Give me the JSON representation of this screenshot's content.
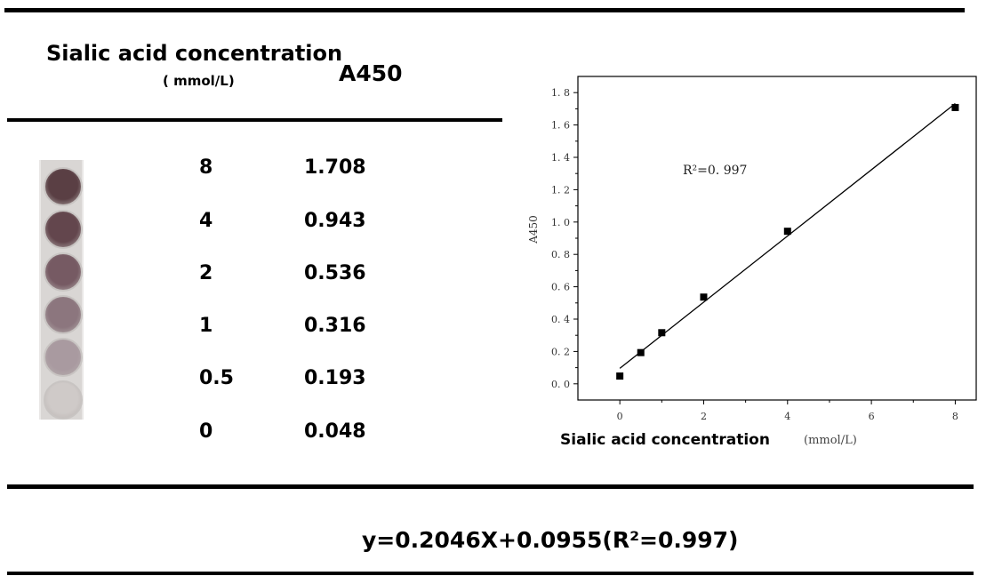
{
  "table": {
    "header_concentration": "Sialic acid concentration",
    "header_unit": "( mmol/L)",
    "header_absorbance": "A450",
    "rows": [
      {
        "conc": "8",
        "a450": "1.708"
      },
      {
        "conc": "4",
        "a450": "0.943"
      },
      {
        "conc": "2",
        "a450": "0.536"
      },
      {
        "conc": "1",
        "a450": "0.316"
      },
      {
        "conc": "0.5",
        "a450": "0.193"
      },
      {
        "conc": "0",
        "a450": "0.048"
      }
    ]
  },
  "wells": {
    "colors": [
      "#5a3f44",
      "#63464d",
      "#765a63",
      "#8c767e",
      "#a99aa0",
      "#cfcac8"
    ]
  },
  "equation": "y=0.2046X+0.0955(R²=0.997)",
  "chart_data": {
    "type": "scatter",
    "xlabel": "Sialic acid concentration",
    "xlabel_unit": "(mmol/L)",
    "ylabel": "A450",
    "annotation": "R²=0. 997",
    "x": [
      0,
      0.5,
      1,
      2,
      4,
      8
    ],
    "y": [
      0.048,
      0.193,
      0.316,
      0.536,
      0.943,
      1.708
    ],
    "fit": {
      "slope": 0.2046,
      "intercept": 0.0955
    },
    "xlim": [
      -1,
      8.5
    ],
    "ylim": [
      -0.1,
      1.9
    ],
    "xticks": [
      0,
      2,
      4,
      6,
      8
    ],
    "yticks": [
      0.0,
      0.2,
      0.4,
      0.6,
      0.8,
      1.0,
      1.2,
      1.4,
      1.6,
      1.8
    ],
    "xtick_labels": [
      "0",
      "2",
      "4",
      "6",
      "8"
    ],
    "ytick_labels": [
      "0. 0",
      "0. 2",
      "0. 4",
      "0. 6",
      "0. 8",
      "1. 0",
      "1. 2",
      "1. 4",
      "1. 6",
      "1. 8"
    ],
    "grid": false,
    "marker_color": "#000000"
  }
}
